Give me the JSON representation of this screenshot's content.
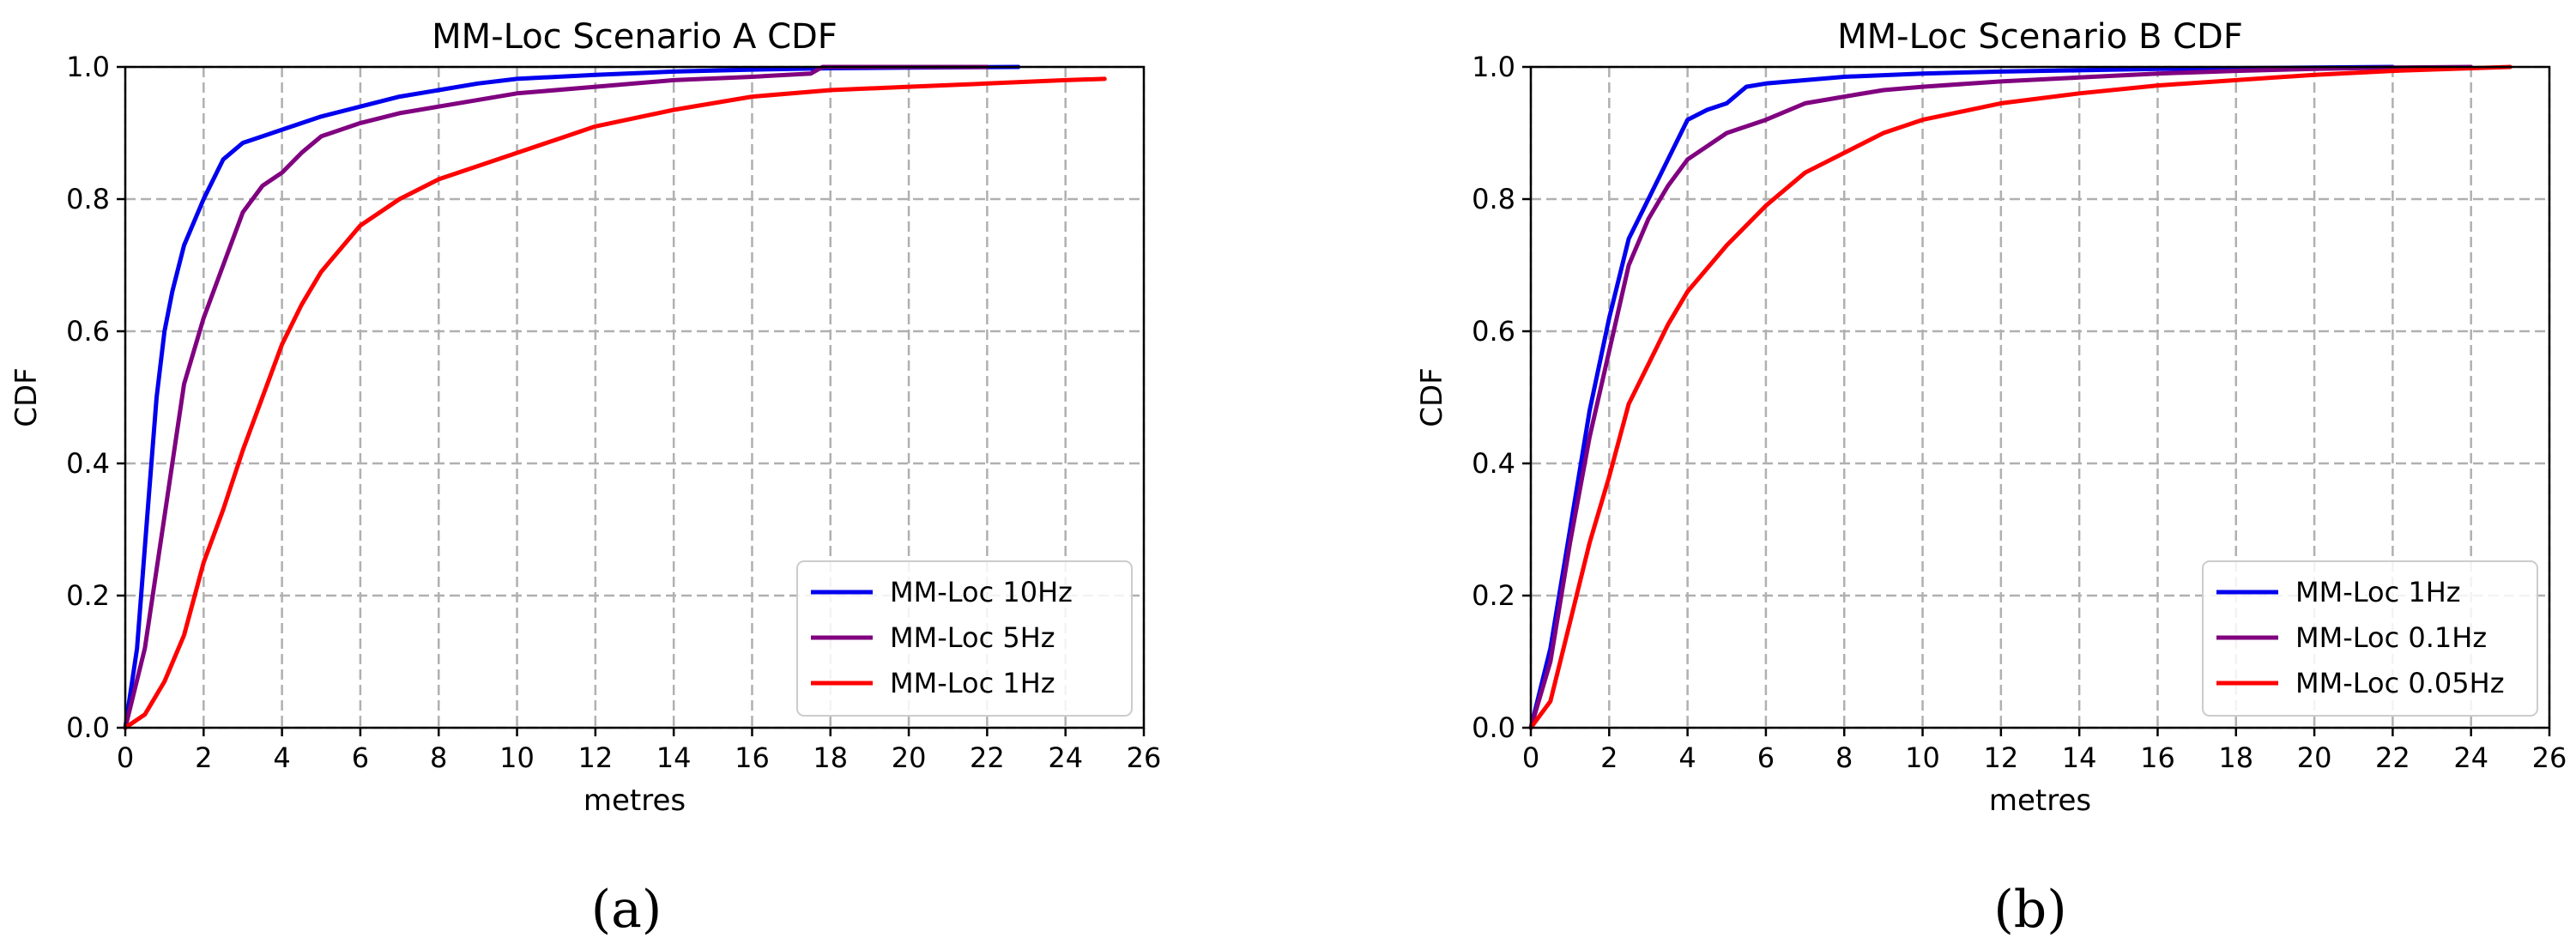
{
  "chart_data": [
    {
      "type": "line",
      "title": "MM-Loc Scenario A CDF",
      "xlabel": "metres",
      "ylabel": "CDF",
      "xlim": [
        0,
        26
      ],
      "ylim": [
        0,
        1.0
      ],
      "x_ticks": [
        "0",
        "2",
        "4",
        "6",
        "8",
        "10",
        "12",
        "14",
        "16",
        "18",
        "20",
        "22",
        "24",
        "26"
      ],
      "y_ticks": [
        "0.0",
        "0.2",
        "0.4",
        "0.6",
        "0.8",
        "1.0"
      ],
      "grid": true,
      "legend_position": "lower-right",
      "caption": "(a)",
      "series": [
        {
          "name": "MM-Loc 10Hz",
          "color": "#0000ee",
          "points": [
            [
              0,
              0
            ],
            [
              0.3,
              0.12
            ],
            [
              0.6,
              0.35
            ],
            [
              0.8,
              0.5
            ],
            [
              1.0,
              0.6
            ],
            [
              1.2,
              0.66
            ],
            [
              1.5,
              0.73
            ],
            [
              2.0,
              0.8
            ],
            [
              2.5,
              0.86
            ],
            [
              3.0,
              0.885
            ],
            [
              3.5,
              0.895
            ],
            [
              4.0,
              0.905
            ],
            [
              5.0,
              0.925
            ],
            [
              6.0,
              0.94
            ],
            [
              7.0,
              0.955
            ],
            [
              8.0,
              0.965
            ],
            [
              9.0,
              0.975
            ],
            [
              10.0,
              0.982
            ],
            [
              12.0,
              0.988
            ],
            [
              14.0,
              0.993
            ],
            [
              16.0,
              0.996
            ],
            [
              18.0,
              0.998
            ],
            [
              20.0,
              0.999
            ],
            [
              22.8,
              1.0
            ]
          ]
        },
        {
          "name": "MM-Loc 5Hz",
          "color": "#800080",
          "points": [
            [
              0,
              0
            ],
            [
              0.5,
              0.12
            ],
            [
              1.0,
              0.32
            ],
            [
              1.5,
              0.52
            ],
            [
              2.0,
              0.62
            ],
            [
              2.5,
              0.7
            ],
            [
              3.0,
              0.78
            ],
            [
              3.5,
              0.82
            ],
            [
              4.0,
              0.84
            ],
            [
              4.5,
              0.87
            ],
            [
              5.0,
              0.895
            ],
            [
              6.0,
              0.915
            ],
            [
              7.0,
              0.93
            ],
            [
              8.0,
              0.94
            ],
            [
              10.0,
              0.96
            ],
            [
              12.0,
              0.97
            ],
            [
              14.0,
              0.98
            ],
            [
              16.0,
              0.985
            ],
            [
              17.5,
              0.99
            ],
            [
              17.8,
              1.0
            ],
            [
              22,
              1.0
            ]
          ]
        },
        {
          "name": "MM-Loc 1Hz",
          "color": "#ff0000",
          "points": [
            [
              0,
              0
            ],
            [
              0.5,
              0.02
            ],
            [
              1.0,
              0.07
            ],
            [
              1.5,
              0.14
            ],
            [
              2.0,
              0.25
            ],
            [
              2.5,
              0.33
            ],
            [
              3.0,
              0.42
            ],
            [
              3.5,
              0.5
            ],
            [
              4.0,
              0.58
            ],
            [
              4.5,
              0.64
            ],
            [
              5.0,
              0.69
            ],
            [
              6.0,
              0.76
            ],
            [
              7.0,
              0.8
            ],
            [
              8.0,
              0.83
            ],
            [
              9.0,
              0.85
            ],
            [
              10.0,
              0.87
            ],
            [
              11.0,
              0.89
            ],
            [
              12.0,
              0.91
            ],
            [
              14.0,
              0.935
            ],
            [
              16.0,
              0.955
            ],
            [
              18.0,
              0.965
            ],
            [
              20.0,
              0.97
            ],
            [
              22.0,
              0.975
            ],
            [
              24.0,
              0.98
            ],
            [
              25.0,
              0.982
            ]
          ]
        }
      ]
    },
    {
      "type": "line",
      "title": "MM-Loc Scenario B CDF",
      "xlabel": "metres",
      "ylabel": "CDF",
      "xlim": [
        0,
        26
      ],
      "ylim": [
        0,
        1.0
      ],
      "x_ticks": [
        "0",
        "2",
        "4",
        "6",
        "8",
        "10",
        "12",
        "14",
        "16",
        "18",
        "20",
        "22",
        "24",
        "26"
      ],
      "y_ticks": [
        "0.0",
        "0.2",
        "0.4",
        "0.6",
        "0.8",
        "1.0"
      ],
      "grid": true,
      "legend_position": "lower-right",
      "caption": "(b)",
      "series": [
        {
          "name": "MM-Loc 1Hz",
          "color": "#0000ee",
          "points": [
            [
              0,
              0
            ],
            [
              0.5,
              0.12
            ],
            [
              1.0,
              0.3
            ],
            [
              1.5,
              0.48
            ],
            [
              2.0,
              0.62
            ],
            [
              2.5,
              0.74
            ],
            [
              3.0,
              0.8
            ],
            [
              3.5,
              0.86
            ],
            [
              4.0,
              0.92
            ],
            [
              4.5,
              0.935
            ],
            [
              5.0,
              0.945
            ],
            [
              5.5,
              0.97
            ],
            [
              6.0,
              0.975
            ],
            [
              7.0,
              0.98
            ],
            [
              8.0,
              0.985
            ],
            [
              10.0,
              0.99
            ],
            [
              12.0,
              0.993
            ],
            [
              14.0,
              0.995
            ],
            [
              16.0,
              0.997
            ],
            [
              18.0,
              0.998
            ],
            [
              20.0,
              0.999
            ],
            [
              22.0,
              1.0
            ]
          ]
        },
        {
          "name": "MM-Loc 0.1Hz",
          "color": "#800080",
          "points": [
            [
              0,
              0
            ],
            [
              0.5,
              0.1
            ],
            [
              1.0,
              0.28
            ],
            [
              1.5,
              0.44
            ],
            [
              2.0,
              0.57
            ],
            [
              2.5,
              0.7
            ],
            [
              3.0,
              0.77
            ],
            [
              3.5,
              0.82
            ],
            [
              4.0,
              0.86
            ],
            [
              4.5,
              0.88
            ],
            [
              5.0,
              0.9
            ],
            [
              6.0,
              0.92
            ],
            [
              7.0,
              0.945
            ],
            [
              8.0,
              0.955
            ],
            [
              9.0,
              0.965
            ],
            [
              10.0,
              0.97
            ],
            [
              12.0,
              0.978
            ],
            [
              14.0,
              0.984
            ],
            [
              16.0,
              0.99
            ],
            [
              18.0,
              0.994
            ],
            [
              20.0,
              0.997
            ],
            [
              22.0,
              0.999
            ],
            [
              24.0,
              1.0
            ]
          ]
        },
        {
          "name": "MM-Loc 0.05Hz",
          "color": "#ff0000",
          "points": [
            [
              0,
              0
            ],
            [
              0.5,
              0.04
            ],
            [
              1.0,
              0.16
            ],
            [
              1.5,
              0.28
            ],
            [
              2.0,
              0.38
            ],
            [
              2.5,
              0.49
            ],
            [
              3.0,
              0.55
            ],
            [
              3.5,
              0.61
            ],
            [
              4.0,
              0.66
            ],
            [
              5.0,
              0.73
            ],
            [
              6.0,
              0.79
            ],
            [
              7.0,
              0.84
            ],
            [
              8.0,
              0.87
            ],
            [
              9.0,
              0.9
            ],
            [
              10.0,
              0.92
            ],
            [
              12.0,
              0.945
            ],
            [
              14.0,
              0.96
            ],
            [
              16.0,
              0.972
            ],
            [
              18.0,
              0.98
            ],
            [
              20.0,
              0.988
            ],
            [
              22.0,
              0.994
            ],
            [
              24.0,
              0.998
            ],
            [
              25.0,
              1.0
            ]
          ]
        }
      ]
    }
  ]
}
